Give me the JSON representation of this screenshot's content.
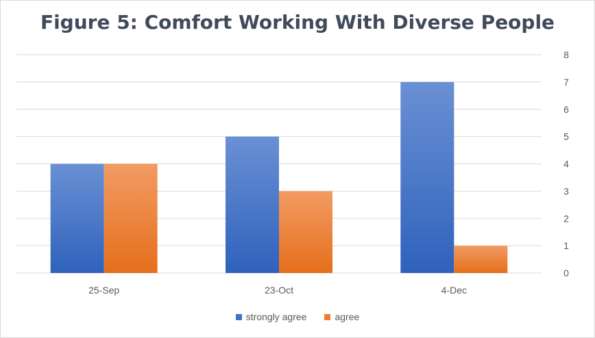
{
  "chart_data": {
    "type": "bar",
    "title": "Figure 5: Comfort Working With Diverse People",
    "categories": [
      "25-Sep",
      "23-Oct",
      "4-Dec"
    ],
    "series": [
      {
        "name": "strongly agree",
        "values": [
          4,
          5,
          7
        ],
        "color": "#4472c4"
      },
      {
        "name": "agree",
        "values": [
          4,
          3,
          1
        ],
        "color": "#ed7d31"
      }
    ],
    "ylim": [
      0,
      8
    ],
    "yticks": [
      "0",
      "1",
      "2",
      "3",
      "4",
      "5",
      "6",
      "7",
      "8"
    ],
    "y_axis_position": "right",
    "grid": true,
    "legend_position": "bottom"
  }
}
